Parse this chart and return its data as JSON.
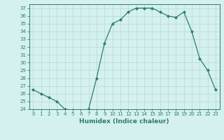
{
  "x": [
    0,
    1,
    2,
    3,
    4,
    5,
    6,
    7,
    8,
    9,
    10,
    11,
    12,
    13,
    14,
    15,
    16,
    17,
    18,
    19,
    20,
    21,
    22,
    23
  ],
  "y": [
    26.5,
    26.0,
    25.5,
    25.0,
    24.0,
    23.9,
    23.8,
    24.0,
    28.0,
    32.5,
    35.0,
    35.5,
    36.5,
    37.0,
    37.0,
    37.0,
    36.5,
    36.0,
    35.8,
    36.5,
    34.0,
    30.5,
    29.0,
    26.5
  ],
  "line_color": "#2d7d6e",
  "marker": "D",
  "marker_size": 2.0,
  "bg_color": "#d4f0ef",
  "grid_color": "#b8d8d6",
  "xlabel": "Humidex (Indice chaleur)",
  "xlim": [
    -0.5,
    23.5
  ],
  "ylim": [
    24,
    37.5
  ],
  "yticks": [
    24,
    25,
    26,
    27,
    28,
    29,
    30,
    31,
    32,
    33,
    34,
    35,
    36,
    37
  ],
  "xticks": [
    0,
    1,
    2,
    3,
    4,
    5,
    6,
    7,
    8,
    9,
    10,
    11,
    12,
    13,
    14,
    15,
    16,
    17,
    18,
    19,
    20,
    21,
    22,
    23
  ],
  "xtick_labels": [
    "0",
    "1",
    "2",
    "3",
    "4",
    "5",
    "6",
    "7",
    "8",
    "9",
    "10",
    "11",
    "12",
    "13",
    "14",
    "15",
    "16",
    "17",
    "18",
    "19",
    "20",
    "21",
    "22",
    "23"
  ],
  "tick_color": "#2d7d6e",
  "spine_color": "#2d7d6e",
  "tick_fontsize": 5.0,
  "xlabel_fontsize": 6.5
}
